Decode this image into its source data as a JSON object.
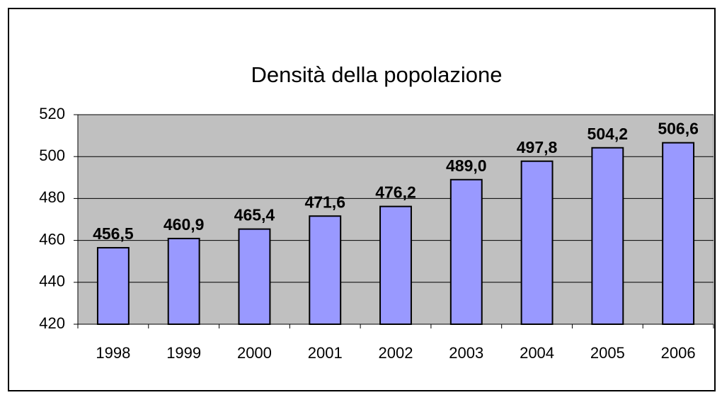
{
  "chart_data": {
    "type": "bar",
    "title": "Densità della popolazione",
    "categories": [
      "1998",
      "1999",
      "2000",
      "2001",
      "2002",
      "2003",
      "2004",
      "2005",
      "2006"
    ],
    "values": [
      456.5,
      460.9,
      465.4,
      471.6,
      476.2,
      489.0,
      497.8,
      504.2,
      506.6
    ],
    "value_labels": [
      "456,5",
      "460,9",
      "465,4",
      "471,6",
      "476,2",
      "489,0",
      "497,8",
      "504,2",
      "506,6"
    ],
    "color": "#9999ff",
    "plot_background": "#c0c0c0",
    "ylim": [
      420,
      520
    ],
    "yticks": [
      420,
      440,
      460,
      480,
      500,
      520
    ],
    "grid": true
  }
}
